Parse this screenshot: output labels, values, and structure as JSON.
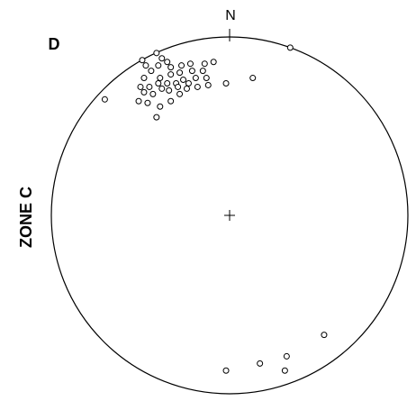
{
  "chart_data": {
    "type": "scatter",
    "title": "D",
    "north_label": "N",
    "side_label": "ZONE C",
    "color": "#000000",
    "xlim": [
      -100,
      100
    ],
    "ylim": [
      -100,
      100
    ],
    "x": [
      34,
      13,
      -2,
      -70,
      53,
      -2,
      17,
      32,
      31,
      -49,
      -41,
      -38,
      -47,
      -40,
      -35,
      -33,
      -27,
      -22,
      -14,
      -9,
      -15,
      -21,
      -28,
      -33,
      -39,
      -44,
      -48,
      -50,
      -45,
      -40,
      -35,
      -30,
      -26,
      -23,
      -19,
      -13,
      -12,
      -18,
      -24,
      -29,
      -34,
      -38,
      -43,
      -48,
      -51,
      -46,
      -39,
      -33,
      -28,
      -41
    ],
    "y": [
      94,
      77,
      74,
      65,
      -67,
      -87,
      -83,
      -79,
      -87,
      87,
      91,
      88,
      84,
      84,
      86,
      83,
      84,
      85,
      85,
      86,
      81,
      81,
      80,
      79,
      77,
      81,
      77,
      72,
      72,
      74,
      74,
      74,
      76,
      74,
      77,
      77,
      73,
      72,
      71,
      72,
      70,
      71,
      68,
      69,
      64,
      63,
      61,
      64,
      68,
      55
    ]
  }
}
